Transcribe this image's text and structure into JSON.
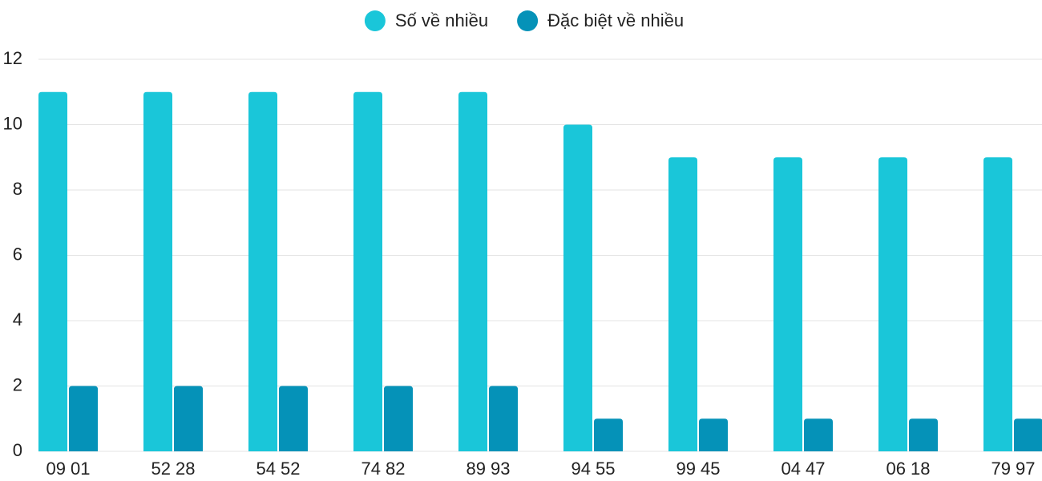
{
  "chart_data": {
    "type": "bar",
    "categories": [
      "09 01",
      "52 28",
      "54 52",
      "74 82",
      "89 93",
      "94 55",
      "99 45",
      "04 47",
      "06 18",
      "79 97"
    ],
    "series": [
      {
        "name": "Số về nhiều",
        "color": "#1ac6d9",
        "values": [
          11,
          11,
          11,
          11,
          11,
          10,
          9,
          9,
          9,
          9
        ]
      },
      {
        "name": "Đặc biệt về nhiều",
        "color": "#0592b8",
        "values": [
          2,
          2,
          2,
          2,
          2,
          1,
          1,
          1,
          1,
          1
        ]
      }
    ],
    "ylim": [
      0,
      12
    ],
    "yticks": [
      0,
      2,
      4,
      6,
      8,
      10,
      12
    ],
    "grid": true,
    "legend": "top"
  }
}
